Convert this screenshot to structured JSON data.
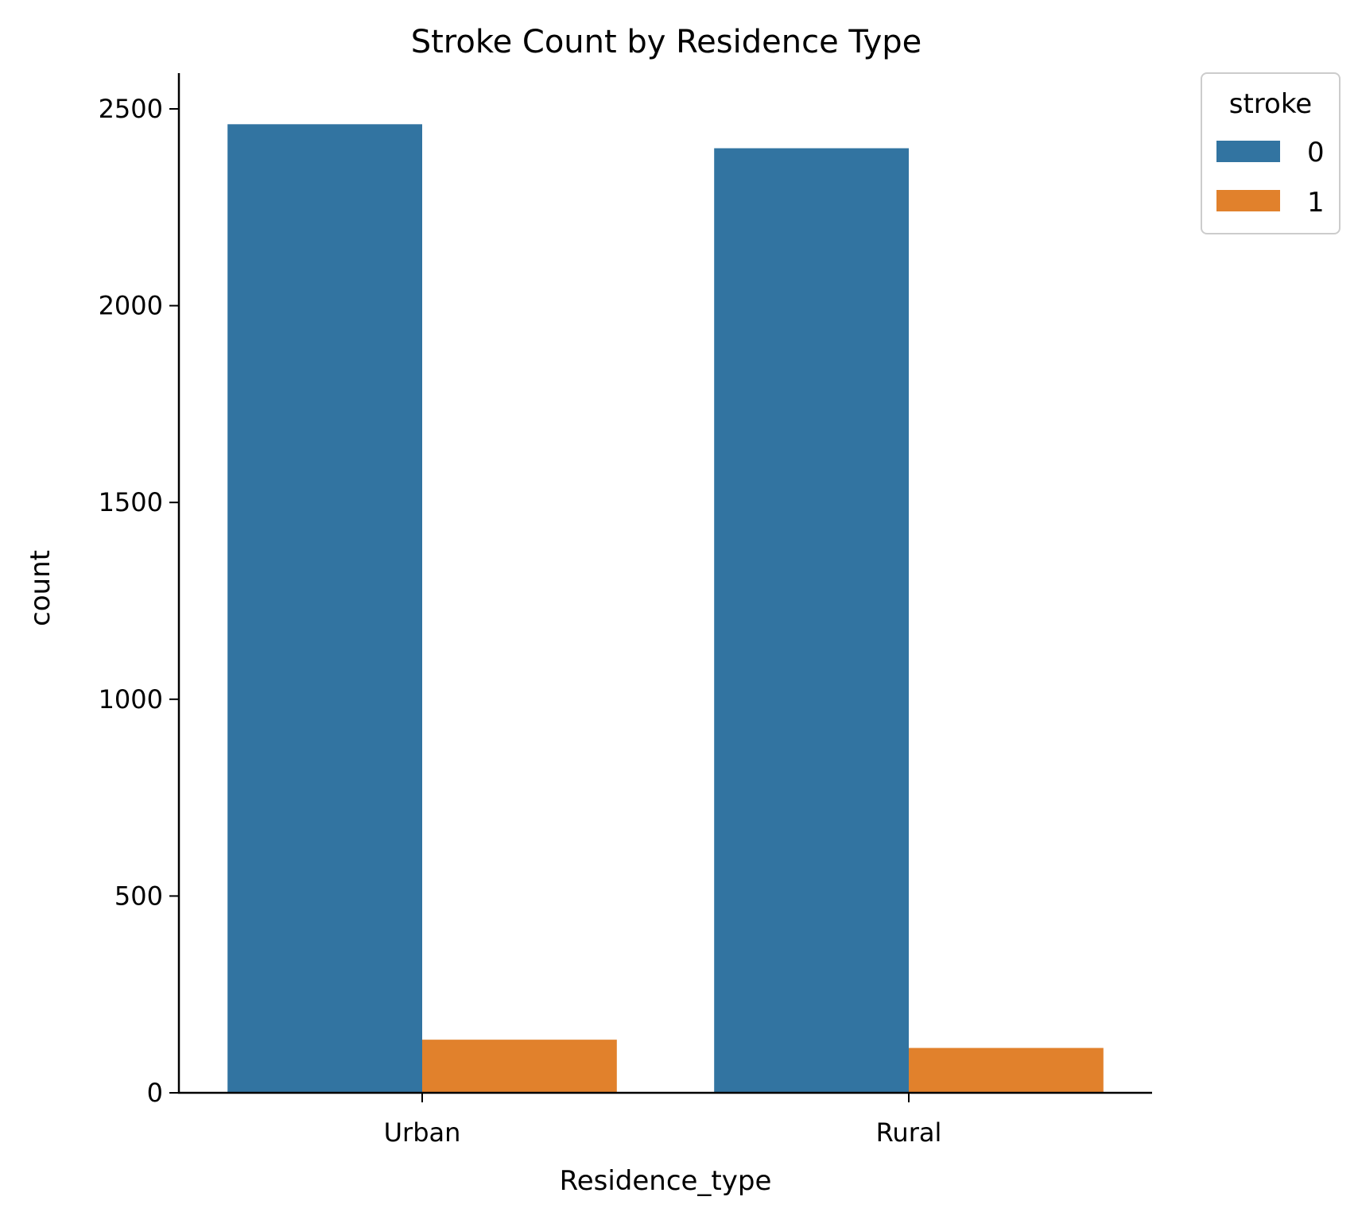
{
  "chart_data": {
    "type": "bar",
    "title": "Stroke Count by Residence Type",
    "xlabel": "Residence_type",
    "ylabel": "count",
    "categories": [
      "Urban",
      "Rural"
    ],
    "series": [
      {
        "name": "0",
        "color": "#3274a1",
        "values": [
          2461,
          2400
        ]
      },
      {
        "name": "1",
        "color": "#e1812c",
        "values": [
          135,
          114
        ]
      }
    ],
    "ylim": [
      0,
      2590
    ],
    "yticks": [
      0,
      500,
      1000,
      1500,
      2000,
      2500
    ],
    "legend": {
      "title": "stroke",
      "placement": "outside-top-right"
    },
    "grid": false
  }
}
